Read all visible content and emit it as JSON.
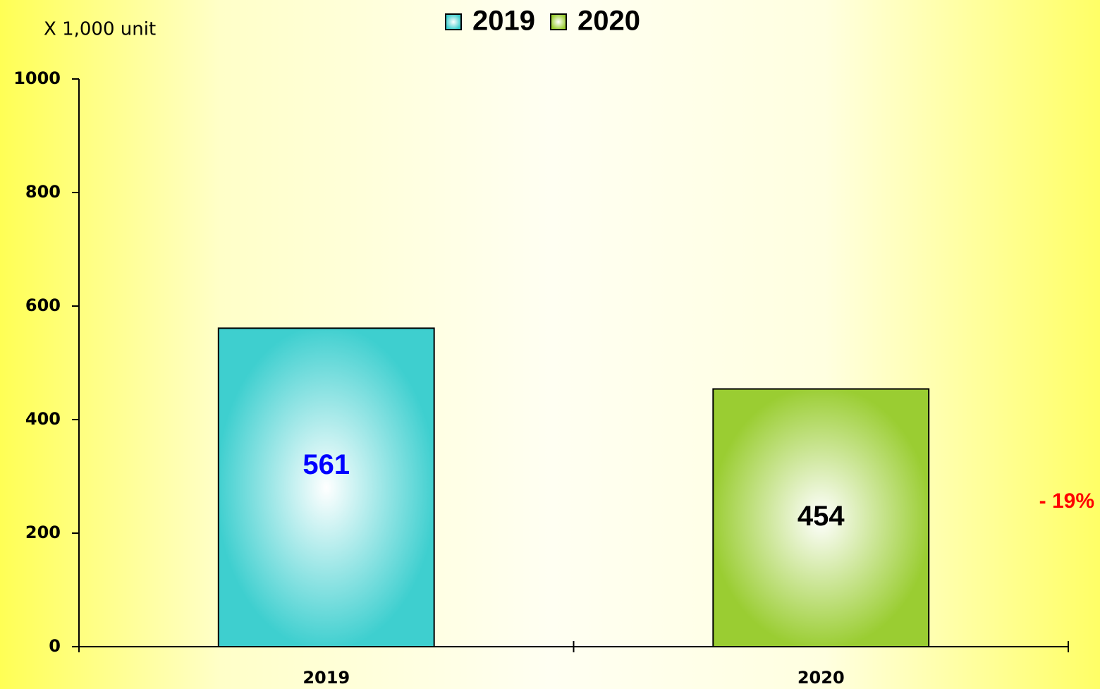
{
  "chart_data": {
    "type": "bar",
    "unit_label": "X 1,000 unit",
    "categories": [
      "2019",
      "2020"
    ],
    "series": [
      {
        "name": "2019",
        "color": "#3ecfcf",
        "label_color": "#0000ff",
        "values": [
          561,
          null
        ]
      },
      {
        "name": "2020",
        "color": "#9acd32",
        "label_color": "#000000",
        "values": [
          null,
          454
        ]
      }
    ],
    "annotation": "- 19%",
    "annotation_color": "#ff0000",
    "ylim": [
      0,
      1000
    ],
    "yticks": [
      0,
      200,
      400,
      600,
      800,
      1000
    ],
    "grid": false
  }
}
